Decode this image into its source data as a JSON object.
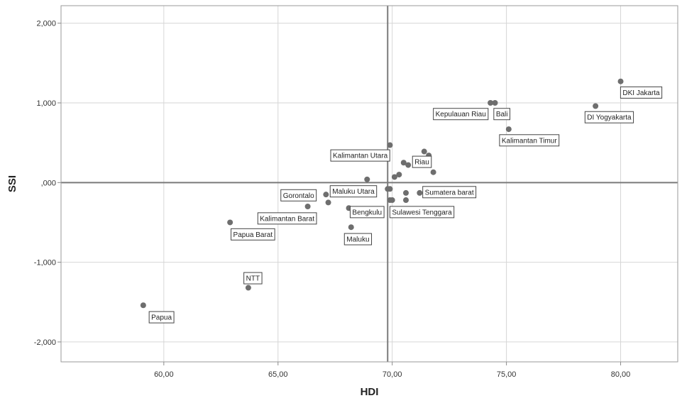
{
  "chart_data": {
    "type": "scatter",
    "xlabel": "HDI",
    "ylabel": "SSI",
    "xlim": [
      55.5,
      82.5
    ],
    "ylim": [
      -2.25,
      2.22
    ],
    "x_ticks": [
      60,
      65,
      70,
      75,
      80
    ],
    "x_tick_labels": [
      "60,00",
      "65,00",
      "70,00",
      "75,00",
      "80,00"
    ],
    "y_ticks": [
      -2,
      -1,
      0,
      1,
      2
    ],
    "y_tick_labels": [
      "-2,000",
      "-1,000",
      ",000",
      "1,000",
      "2,000"
    ],
    "grid": true,
    "reference_lines": {
      "x": 69.8,
      "y": 0
    },
    "marker_color": "#6e6e6e",
    "points": [
      {
        "x": 80.0,
        "y": 1.27
      },
      {
        "x": 78.9,
        "y": 0.96
      },
      {
        "x": 74.3,
        "y": 1.0
      },
      {
        "x": 74.5,
        "y": 1.0
      },
      {
        "x": 75.1,
        "y": 0.67
      },
      {
        "x": 69.9,
        "y": 0.47
      },
      {
        "x": 71.4,
        "y": 0.39
      },
      {
        "x": 71.6,
        "y": 0.34
      },
      {
        "x": 70.5,
        "y": 0.25
      },
      {
        "x": 70.7,
        "y": 0.22
      },
      {
        "x": 71.8,
        "y": 0.13
      },
      {
        "x": 70.3,
        "y": 0.1
      },
      {
        "x": 70.1,
        "y": 0.07
      },
      {
        "x": 68.9,
        "y": 0.04
      },
      {
        "x": 69.8,
        "y": -0.08
      },
      {
        "x": 69.9,
        "y": -0.08
      },
      {
        "x": 71.2,
        "y": -0.13
      },
      {
        "x": 70.6,
        "y": -0.13
      },
      {
        "x": 67.1,
        "y": -0.15
      },
      {
        "x": 69.9,
        "y": -0.22
      },
      {
        "x": 70.0,
        "y": -0.22
      },
      {
        "x": 70.6,
        "y": -0.22
      },
      {
        "x": 67.2,
        "y": -0.25
      },
      {
        "x": 66.3,
        "y": -0.3
      },
      {
        "x": 68.1,
        "y": -0.32
      },
      {
        "x": 62.9,
        "y": -0.5
      },
      {
        "x": 68.2,
        "y": -0.56
      },
      {
        "x": 63.7,
        "y": -1.32
      },
      {
        "x": 59.1,
        "y": -1.54
      }
    ],
    "labels": [
      {
        "text": "DKI Jakarta",
        "x": 80.9,
        "y": 1.13
      },
      {
        "text": "Kepulauan Riau",
        "x": 73.0,
        "y": 0.86
      },
      {
        "text": "Bali",
        "x": 74.8,
        "y": 0.86
      },
      {
        "text": "DI Yogyakarta",
        "x": 79.5,
        "y": 0.82
      },
      {
        "text": "Kalimantan Timur",
        "x": 76.0,
        "y": 0.53
      },
      {
        "text": "Kalimantan Utara",
        "x": 68.6,
        "y": 0.34
      },
      {
        "text": "Riau",
        "x": 71.3,
        "y": 0.26
      },
      {
        "text": "Gorontalo",
        "x": 65.9,
        "y": -0.16
      },
      {
        "text": "Maluku Utara",
        "x": 68.3,
        "y": -0.11
      },
      {
        "text": "Sumatera barat",
        "x": 72.5,
        "y": -0.12
      },
      {
        "text": "Kalimantan Barat",
        "x": 65.4,
        "y": -0.45
      },
      {
        "text": "Bengkulu",
        "x": 68.9,
        "y": -0.37
      },
      {
        "text": "Sulawesi Tenggara",
        "x": 71.3,
        "y": -0.37
      },
      {
        "text": "Papua Barat",
        "x": 63.9,
        "y": -0.65
      },
      {
        "text": "Maluku",
        "x": 68.5,
        "y": -0.71
      },
      {
        "text": "NTT",
        "x": 63.9,
        "y": -1.2
      },
      {
        "text": "Papua",
        "x": 59.9,
        "y": -1.69
      }
    ]
  }
}
